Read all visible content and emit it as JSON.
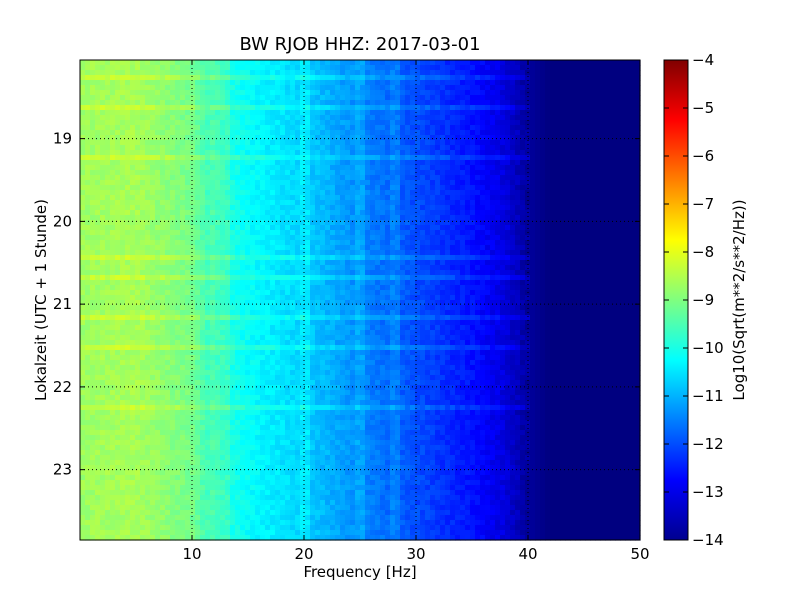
{
  "chart_data": {
    "type": "heatmap",
    "title": "BW RJOB HHZ: 2017-03-01",
    "xlabel": "Frequency [Hz]",
    "ylabel": "Lokalzeit (UTC + 1 Stunde)",
    "xlim": [
      0,
      50
    ],
    "ylim": [
      18.05,
      23.85
    ],
    "y_inverted": true,
    "x_ticks": [
      10,
      20,
      30,
      40,
      50
    ],
    "y_ticks": [
      19,
      20,
      21,
      22,
      23
    ],
    "grid": true,
    "colorbar": {
      "label": "Log10(Sqrt(m**2/s**2/Hz))",
      "range": [
        -14,
        -4
      ],
      "ticks": [
        -14,
        -13,
        -12,
        -11,
        -10,
        -9,
        -8,
        -7,
        -6,
        -5,
        -4
      ],
      "colormap": "jet"
    },
    "spectrum_profile": {
      "frequency": [
        0,
        5,
        10,
        12,
        15,
        20,
        25,
        30,
        35,
        38,
        40,
        42,
        50
      ],
      "level": [
        -8.7,
        -8.6,
        -9.1,
        -9.8,
        -10.2,
        -10.7,
        -11.4,
        -12.0,
        -12.6,
        -13.1,
        -13.7,
        -14.0,
        -14.0
      ]
    },
    "artifact_frequencies": [
      12,
      13,
      20,
      25,
      28
    ]
  }
}
